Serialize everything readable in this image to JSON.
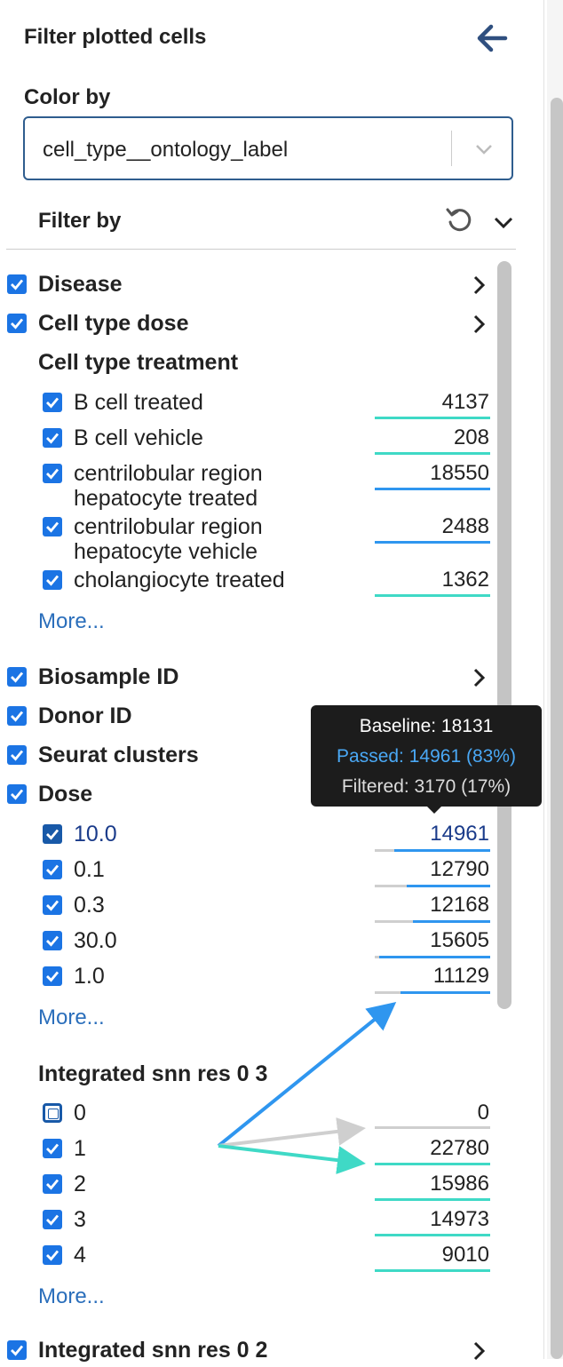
{
  "header": {
    "title": "Filter plotted cells",
    "back_icon": "arrow-left-icon"
  },
  "color_by": {
    "label": "Color by",
    "value": "cell_type__ontology_label"
  },
  "filter_by": {
    "label": "Filter by"
  },
  "groups": {
    "disease": "Disease",
    "cell_type_dose": "Cell type dose",
    "cell_type_treatment": {
      "label": "Cell type treatment",
      "items": [
        {
          "line1": "B cell treated",
          "line2": "",
          "count": "4137"
        },
        {
          "line1": "B cell vehicle",
          "line2": "",
          "count": "208"
        },
        {
          "line1": "centrilobular region",
          "line2": "hepatocyte treated",
          "count": "18550"
        },
        {
          "line1": "centrilobular region",
          "line2": "hepatocyte vehicle",
          "count": "2488"
        },
        {
          "line1": "cholangiocyte treated",
          "line2": "",
          "count": "1362"
        }
      ],
      "more": "More..."
    },
    "biosample_id": "Biosample ID",
    "donor_id": "Donor ID",
    "seurat_clusters": "Seurat clusters",
    "dose": {
      "label": "Dose",
      "items": [
        {
          "label": "10.0",
          "count": "14961",
          "passed_fraction": 0.83
        },
        {
          "label": "0.1",
          "count": "12790",
          "passed_fraction": 0.72
        },
        {
          "label": "0.3",
          "count": "12168",
          "passed_fraction": 0.67
        },
        {
          "label": "30.0",
          "count": "15605",
          "passed_fraction": 0.96
        },
        {
          "label": "1.0",
          "count": "11129",
          "passed_fraction": 0.78
        }
      ],
      "more": "More..."
    },
    "snn_res_0_3": {
      "label": "Integrated snn res 0 3",
      "items": [
        {
          "label": "0",
          "count": "0",
          "checked": false
        },
        {
          "label": "1",
          "count": "22780",
          "checked": true
        },
        {
          "label": "2",
          "count": "15986",
          "checked": true
        },
        {
          "label": "3",
          "count": "14973",
          "checked": true
        },
        {
          "label": "4",
          "count": "9010",
          "checked": true
        }
      ],
      "more": "More..."
    },
    "snn_res_0_2": "Integrated snn res 0 2"
  },
  "tooltip": {
    "baseline": "Baseline: 18131",
    "passed": "Passed: 14961 (83%)",
    "filtered": "Filtered: 3170 (17%)"
  },
  "colors": {
    "checkbox": "#1b74e4",
    "passed_bar": "#2f96ef",
    "unfiltered_bar": "#3fd9c6",
    "filtered_bar": "#cfcfcf",
    "link": "#2a6ebb"
  }
}
